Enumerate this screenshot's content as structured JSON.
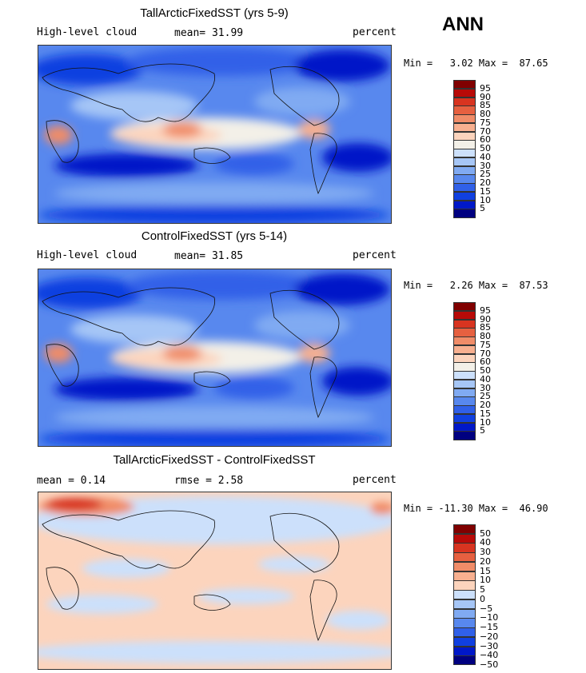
{
  "season": "ANN",
  "palette_pos": [
    "#000080",
    "#0018c8",
    "#1040e0",
    "#3060e8",
    "#5888ee",
    "#80aaf2",
    "#a6c6f6",
    "#cce0fb",
    "#f3f0e8",
    "#fcd4bd",
    "#f8b090",
    "#f08c68",
    "#e66040",
    "#d83420",
    "#b80a08",
    "#800000"
  ],
  "palette_diff": [
    "#000080",
    "#0018c8",
    "#1040e0",
    "#3060e8",
    "#5888ee",
    "#80aaf2",
    "#a6c6f6",
    "#cce0fb",
    "#fcd4bd",
    "#f8b090",
    "#f08c68",
    "#e66040",
    "#d83420",
    "#b80a08",
    "#800000"
  ],
  "panels": [
    {
      "title": "TallArcticFixedSST (yrs 5-9)",
      "left_label": "High-level cloud",
      "mid_label": "mean=  31.99",
      "right_label": "percent",
      "minmax": "Min =   3.02 Max =  87.65",
      "levels": [
        "95",
        "90",
        "85",
        "80",
        "75",
        "70",
        "60",
        "50",
        "40",
        "30",
        "25",
        "20",
        "15",
        "10",
        "5"
      ]
    },
    {
      "title": "ControlFixedSST (yrs 5-14)",
      "left_label": "High-level cloud",
      "mid_label": "mean=  31.85",
      "right_label": "percent",
      "minmax": "Min =   2.26 Max =  87.53",
      "levels": [
        "95",
        "90",
        "85",
        "80",
        "75",
        "70",
        "60",
        "50",
        "40",
        "30",
        "25",
        "20",
        "15",
        "10",
        "5"
      ]
    },
    {
      "title": "TallArcticFixedSST - ControlFixedSST",
      "left_label": "mean =   0.14",
      "mid_label": "rmse =   2.58",
      "right_label": "percent",
      "minmax": "Min = -11.30 Max =  46.90",
      "levels": [
        "50",
        "40",
        "30",
        "20",
        "15",
        "10",
        "5",
        "0",
        "−5",
        "−10",
        "−15",
        "−20",
        "−30",
        "−40",
        "−50"
      ]
    }
  ]
}
